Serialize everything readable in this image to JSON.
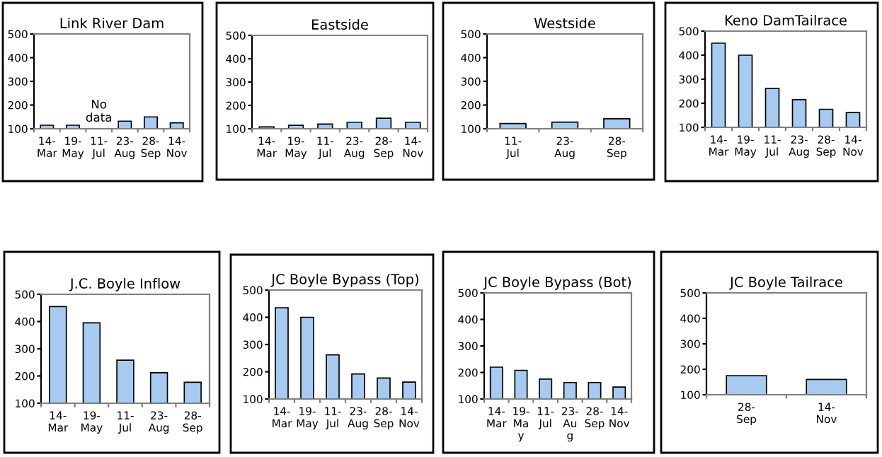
{
  "chart_data": [
    {
      "type": "bar",
      "title": "Link River Dam",
      "categories": [
        "14-\nMar",
        "19-\nMay",
        "11-\nJul",
        "23-\nAug",
        "28-\nSep",
        "14-\nNov"
      ],
      "values": [
        115,
        115,
        null,
        132,
        150,
        125
      ],
      "color": "#a6caf0",
      "ylim": [
        100,
        500
      ],
      "yticks": [
        100,
        200,
        300,
        400,
        500
      ],
      "grid": false,
      "annotations": [
        "No\ndata"
      ]
    },
    {
      "type": "bar",
      "title": "Eastside",
      "categories": [
        "14-\nMar",
        "19-\nMay",
        "11-\nJul",
        "23-\nAug",
        "28-\nSep",
        "14-\nNov"
      ],
      "values": [
        108,
        115,
        120,
        128,
        145,
        128
      ],
      "color": "#a6caf0",
      "ylim": [
        100,
        500
      ],
      "yticks": [
        100,
        200,
        300,
        400,
        500
      ],
      "grid": false
    },
    {
      "type": "bar",
      "title": "Westside",
      "categories": [
        "11-\nJul",
        "23-\nAug",
        "28-\nSep"
      ],
      "values": [
        122,
        128,
        142
      ],
      "color": "#a6caf0",
      "ylim": [
        100,
        500
      ],
      "yticks": [
        100,
        200,
        300,
        400,
        500
      ],
      "grid": false
    },
    {
      "type": "bar",
      "title": "Keno DamTailrace",
      "categories": [
        "14-\nMar",
        "19-\nMay",
        "11-\nJul",
        "23-\nAug",
        "28-\nSep",
        "14-\nNov"
      ],
      "values": [
        450,
        400,
        262,
        215,
        175,
        162
      ],
      "color": "#a6caf0",
      "ylim": [
        100,
        500
      ],
      "yticks": [
        100,
        200,
        300,
        400,
        500
      ],
      "grid": false
    },
    {
      "type": "bar",
      "title": "J.C. Boyle Inflow",
      "categories": [
        "14-\nMar",
        "19-\nMay",
        "11-\nJul",
        "23-\nAug",
        "28-\nSep"
      ],
      "values": [
        455,
        395,
        258,
        212,
        177
      ],
      "color": "#a6caf0",
      "ylim": [
        100,
        500
      ],
      "yticks": [
        100,
        200,
        300,
        400,
        500
      ],
      "grid": false
    },
    {
      "type": "bar",
      "title": "JC Boyle Bypass (Top)",
      "categories": [
        "14-\nMar",
        "19-\nMay",
        "11-\nJul",
        "23-\nAug",
        "28-\nSep",
        "14-\nNov"
      ],
      "values": [
        435,
        400,
        262,
        192,
        177,
        162
      ],
      "color": "#a6caf0",
      "ylim": [
        100,
        500
      ],
      "yticks": [
        100,
        200,
        300,
        400,
        500
      ],
      "grid": false
    },
    {
      "type": "bar",
      "title": "JC Boyle Bypass (Bot)",
      "categories": [
        "14-\nMar",
        "19-\nMa\ny",
        "11-\nJul",
        "23-\nAu\ng",
        "28-\nSep",
        "14-\nNov"
      ],
      "values": [
        220,
        208,
        175,
        162,
        162,
        145
      ],
      "color": "#a6caf0",
      "ylim": [
        100,
        500
      ],
      "yticks": [
        100,
        200,
        300,
        400,
        500
      ],
      "grid": false
    },
    {
      "type": "bar",
      "title": "JC Boyle Tailrace",
      "categories": [
        "28-\nSep",
        "14-\nNov"
      ],
      "values": [
        175,
        160
      ],
      "color": "#a6caf0",
      "ylim": [
        100,
        500
      ],
      "yticks": [
        100,
        200,
        300,
        400,
        500
      ],
      "grid": false
    }
  ]
}
